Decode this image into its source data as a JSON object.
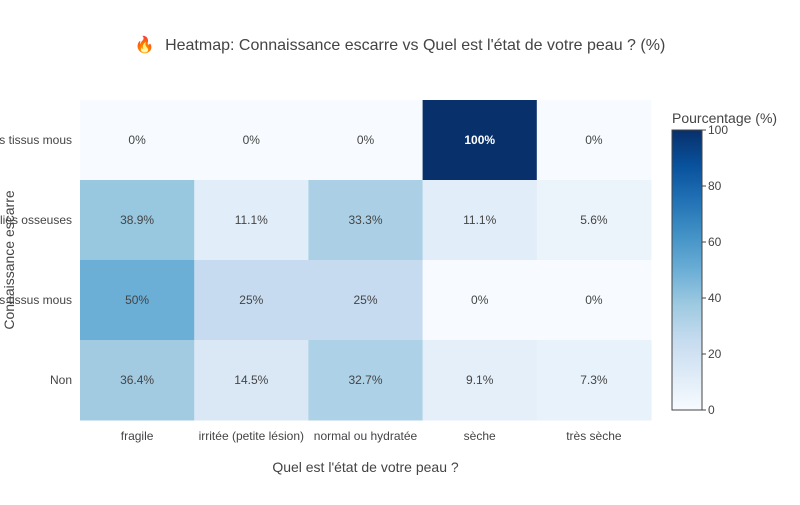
{
  "chart_data": {
    "type": "heatmap",
    "title_icon": "🔥",
    "title": "Heatmap: Connaissance escarre vs Quel est l'état de votre peau ? (%)",
    "xlabel": "Quel est l'état de votre peau ?",
    "ylabel": "Connaissance escarre",
    "x_categories": [
      "fragile",
      "irritée (petite lésion)",
      "normal ou hydratée",
      "sèche",
      "très sèche"
    ],
    "y_categories": [
      "Lésion des tissus mous",
      "Lésion des saillies osseuses",
      "Lésion des tissus mous",
      "Non"
    ],
    "values": [
      [
        0,
        0,
        0,
        100,
        0
      ],
      [
        38.9,
        11.1,
        33.3,
        11.1,
        5.6
      ],
      [
        50,
        25,
        25,
        0,
        0
      ],
      [
        36.4,
        14.5,
        32.7,
        9.1,
        7.3
      ]
    ],
    "cell_labels": [
      [
        "0%",
        "0%",
        "0%",
        "100%",
        "0%"
      ],
      [
        "38.9%",
        "11.1%",
        "33.3%",
        "11.1%",
        "5.6%"
      ],
      [
        "50%",
        "25%",
        "25%",
        "0%",
        "0%"
      ],
      [
        "36.4%",
        "14.5%",
        "32.7%",
        "9.1%",
        "7.3%"
      ]
    ],
    "colorscale": "Blues",
    "colorscale_stops": [
      "#f7fbff",
      "#deebf7",
      "#c6dbef",
      "#9ecae1",
      "#6baed6",
      "#4292c6",
      "#2171b5",
      "#08519c",
      "#08306b"
    ],
    "colorbar": {
      "title": "Pourcentage (%)",
      "range": [
        0,
        100
      ],
      "ticks": [
        "0",
        "20",
        "40",
        "60",
        "80",
        "100"
      ]
    }
  }
}
